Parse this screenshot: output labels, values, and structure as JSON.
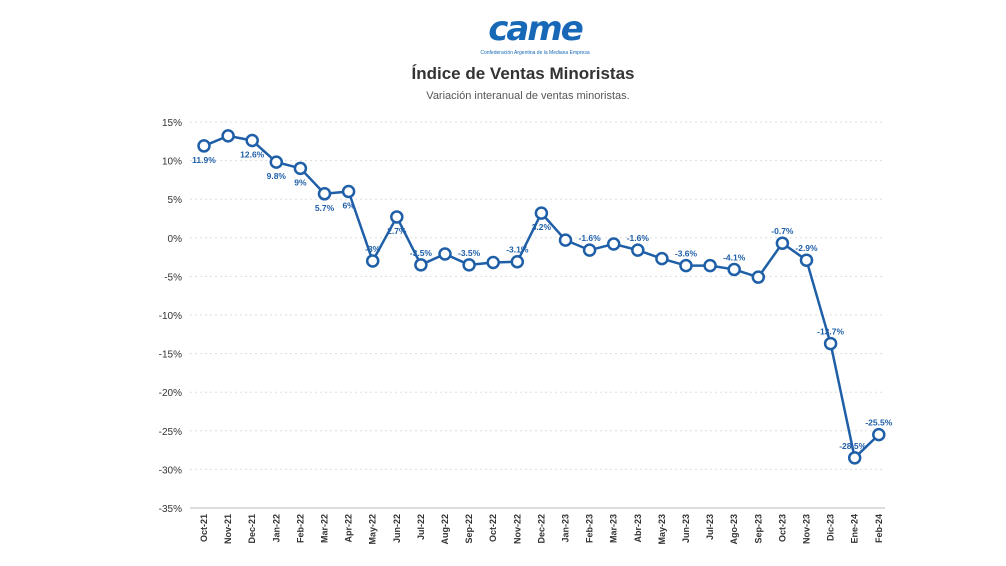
{
  "header": {
    "logo_text": "came",
    "logo_subtext": "Confederación Argentina de la Mediana Empresa",
    "title": "Índice de Ventas Minoristas",
    "subtitle": "Variación interanual de ventas minoristas."
  },
  "colors": {
    "line": "#1f5fa8",
    "marker_fill": "#ffffff",
    "label": "#1f5fa8",
    "grid": "#dddddd",
    "axis_text": "#333333"
  },
  "chart_data": {
    "type": "line",
    "title": "Índice de Ventas Minoristas",
    "subtitle": "Variación interanual de ventas minoristas.",
    "xlabel": "",
    "ylabel": "",
    "ylim": [
      -35,
      15
    ],
    "y_ticks": [
      15,
      10,
      5,
      0,
      -5,
      -10,
      -15,
      -20,
      -25,
      -30,
      -35
    ],
    "y_tick_labels": [
      "15%",
      "10%",
      "5%",
      "0%",
      "-5%",
      "-10%",
      "-15%",
      "-20%",
      "-25%",
      "-30%",
      "-35%"
    ],
    "grid": true,
    "legend": "none",
    "categories": [
      "Oct-21",
      "Nov-21",
      "Dec-21",
      "Jan-22",
      "Feb-22",
      "Mar-22",
      "Apr-22",
      "May-22",
      "Jun-22",
      "Jul-22",
      "Aug-22",
      "Sep-22",
      "Oct-22",
      "Nov-22",
      "Dec-22",
      "Jan-23",
      "Feb-23",
      "Mar-23",
      "Abr-23",
      "May-23",
      "Jun-23",
      "Jul-23",
      "Ago-23",
      "Sep-23",
      "Oct-23",
      "Nov-23",
      "Dic-23",
      "Ene-24",
      "Feb-24"
    ],
    "values": [
      11.9,
      13.2,
      12.6,
      9.8,
      9.0,
      5.7,
      6.0,
      -3.0,
      2.7,
      -3.5,
      -2.1,
      -3.5,
      -3.2,
      -3.1,
      3.2,
      -0.3,
      -1.6,
      -0.8,
      -1.6,
      -2.7,
      -3.6,
      -3.6,
      -4.1,
      -5.1,
      -0.7,
      -2.9,
      -13.7,
      -28.5,
      -25.5
    ],
    "data_labels": [
      "11.9%",
      "",
      "12.6%",
      "9.8%",
      "9%",
      "5.7%",
      "6%",
      "-3%",
      "2.7%",
      "-3.5%",
      "",
      "-3.5%",
      "",
      "-3.1%",
      "3.2%",
      "",
      "-1.6%",
      "",
      "-1.6%",
      "",
      "-3.6%",
      "",
      "-4.1%",
      "",
      "-0.7%",
      "-2.9%",
      "-13.7%",
      "-28.5%",
      "-25.5%"
    ],
    "label_pos": [
      "below",
      "above",
      "below",
      "below",
      "below",
      "below",
      "below",
      "above",
      "below",
      "above",
      "above",
      "above",
      "above",
      "above",
      "below",
      "above",
      "above",
      "above",
      "above",
      "above",
      "above",
      "above",
      "above",
      "above",
      "above",
      "above",
      "above",
      "left",
      "above"
    ]
  }
}
